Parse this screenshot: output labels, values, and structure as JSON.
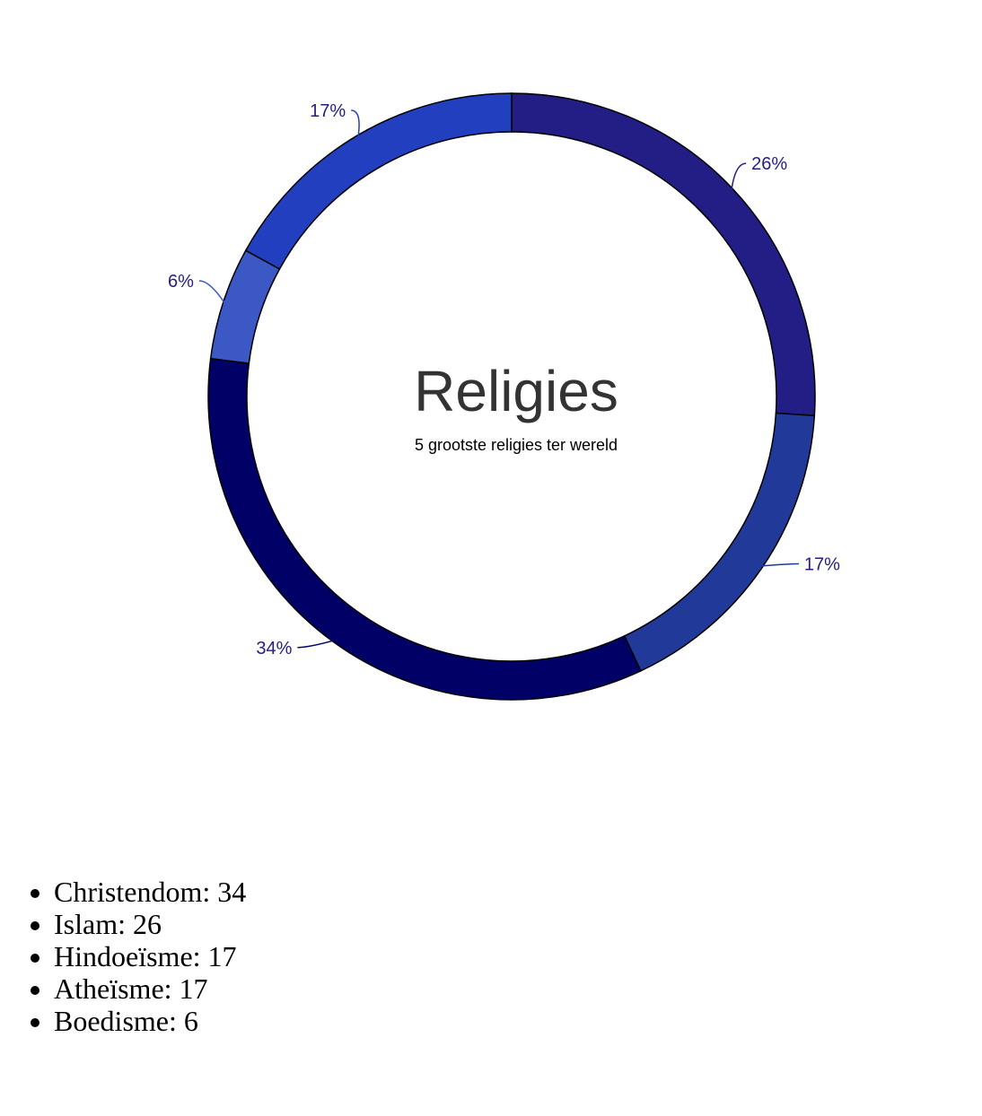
{
  "chart_data": {
    "type": "pie",
    "variant": "donut",
    "title": "Religies",
    "subtitle": "5 grootste religies ter wereld",
    "slices": [
      {
        "name": "Islam",
        "value": 26,
        "label": "26%",
        "color": "#231e85"
      },
      {
        "name": "Atheïsme",
        "value": 17,
        "label": "17%",
        "color": "#213a99"
      },
      {
        "name": "Christendom",
        "value": 34,
        "label": "34%",
        "color": "#000066"
      },
      {
        "name": "Boedisme",
        "value": 6,
        "label": "6%",
        "color": "#3b58c4"
      },
      {
        "name": "Hindoeïsme",
        "value": 17,
        "label": "17%",
        "color": "#223fc0"
      }
    ],
    "label_colors": [
      "#231e85",
      "#231e85",
      "#231e85",
      "#231e85",
      "#231e85"
    ],
    "leader_line_colors": [
      "#231e85",
      "#213a99",
      "#000066",
      "#3b58c4",
      "#223fc0"
    ],
    "start_angle_deg": 0,
    "direction": "clockwise"
  },
  "legend": {
    "items": [
      {
        "text": "Christendom: 34"
      },
      {
        "text": "Islam: 26"
      },
      {
        "text": "Hindoeïsme: 17"
      },
      {
        "text": "Atheïsme: 17"
      },
      {
        "text": "Boedisme: 6"
      }
    ]
  }
}
